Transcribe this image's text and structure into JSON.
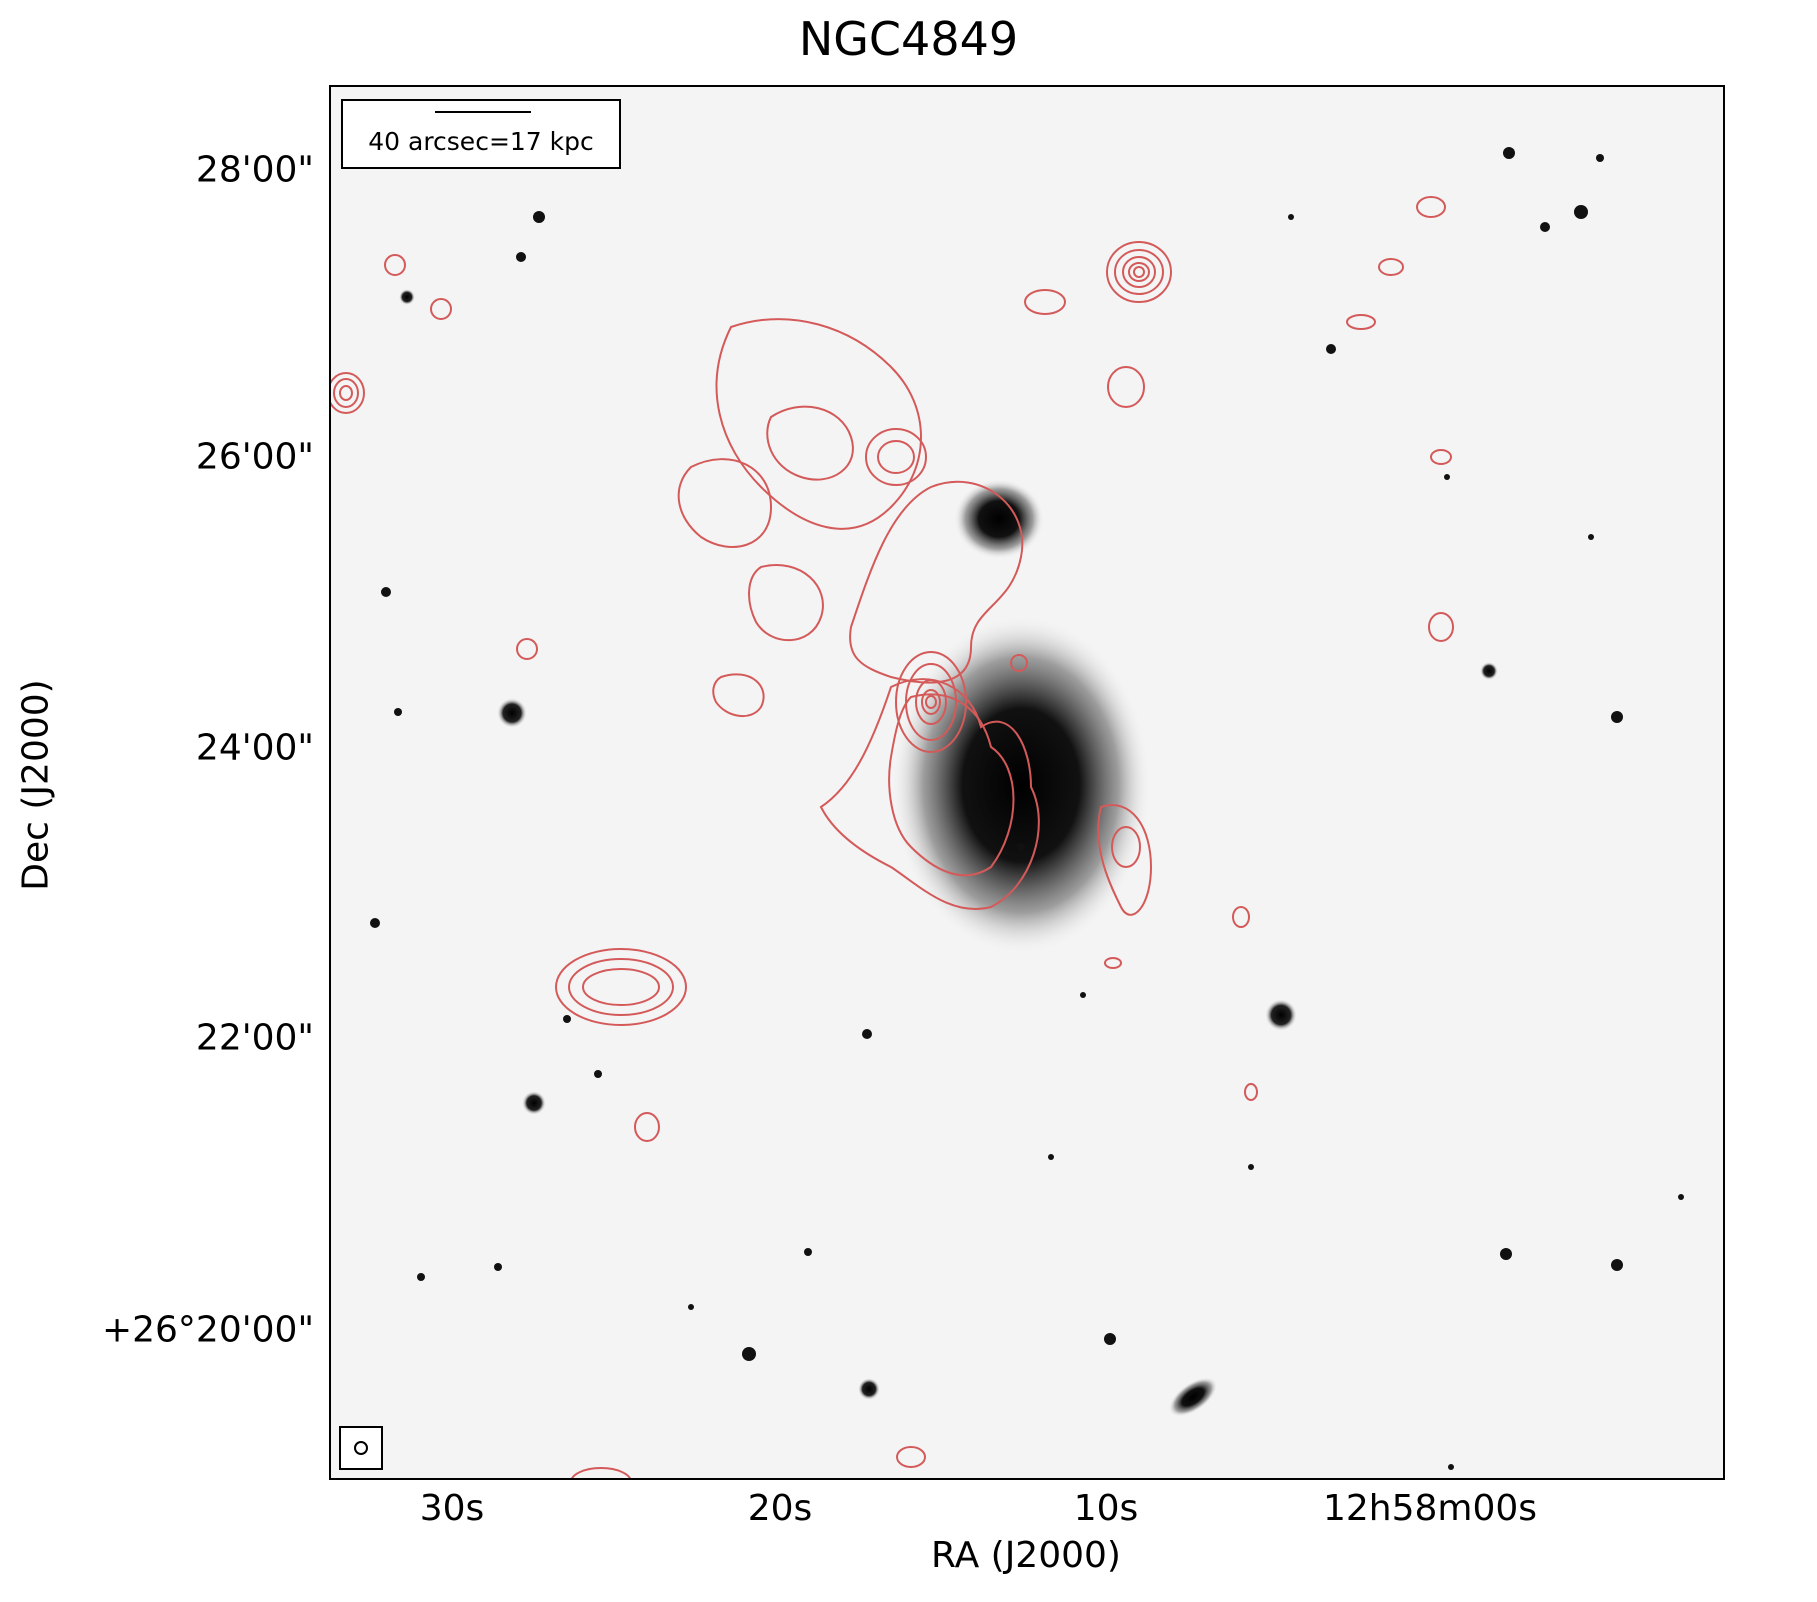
{
  "figure": {
    "title": "NGC4849",
    "ylabel": "Dec (J2000)",
    "xlabel": "RA (J2000)",
    "yticks": [
      "28'00\"",
      "26'00\"",
      "24'00\"",
      "22'00\"",
      "+26°20'00\""
    ],
    "xticks": [
      "30s",
      "20s",
      "10s",
      "12h58m00s"
    ],
    "scale_label": "40 arcsec=17 kpc",
    "contour_color": "#d45a5a"
  }
}
